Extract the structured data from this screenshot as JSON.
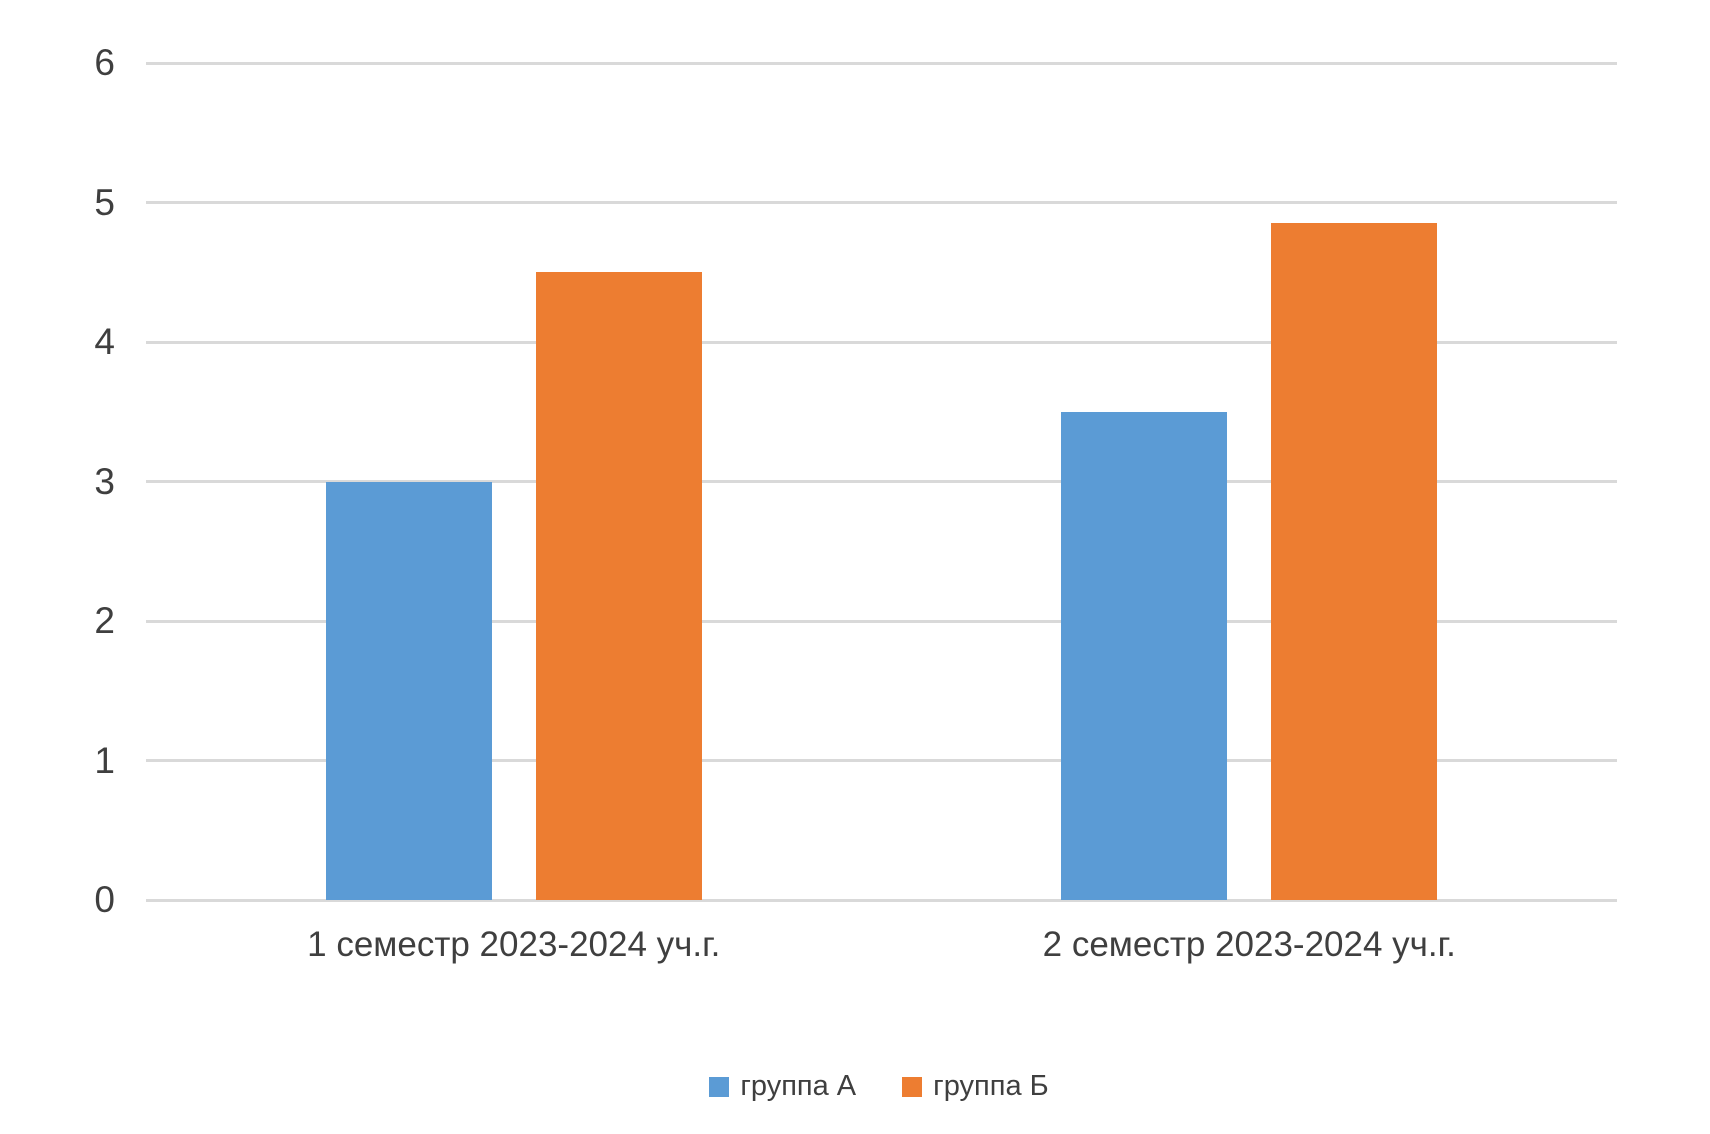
{
  "chart_data": {
    "type": "bar",
    "title": "",
    "xlabel": "",
    "ylabel": "",
    "categories": [
      "1 семестр 2023-2024 уч.г.",
      "2 семестр 2023-2024 уч.г."
    ],
    "series": [
      {
        "name": "группа А",
        "color": "#5B9BD5",
        "values": [
          3,
          3.5
        ]
      },
      {
        "name": "группа Б",
        "color": "#ED7D31",
        "values": [
          4.5,
          4.85
        ]
      }
    ],
    "ylim": [
      0,
      6
    ],
    "yticks": [
      0,
      1,
      2,
      3,
      4,
      5,
      6
    ],
    "grid": true,
    "legend_position": "bottom",
    "colors": {
      "background": "#FFFFFF",
      "gridline": "#D9D9D9",
      "text": "#3F3F3F"
    }
  }
}
